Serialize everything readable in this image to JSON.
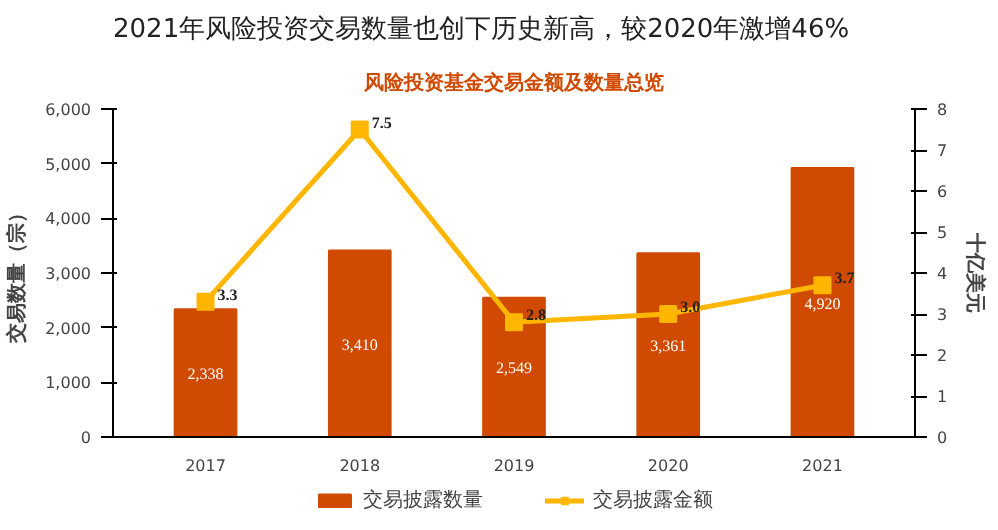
{
  "chart_data": {
    "type": "bar",
    "title": "2021年风险投资交易数量也创下历史新高，较2020年激增46%",
    "subtitle": "风险投资基金交易金额及数量总览",
    "ylabel": "交易数量（宗）",
    "y2label": "十亿美元",
    "categories": [
      "2017",
      "2018",
      "2019",
      "2020",
      "2021"
    ],
    "series": [
      {
        "name": "交易披露数量",
        "color": "#d04a02",
        "values": [
          2338,
          3410,
          2549,
          3361,
          4920
        ],
        "value_labels": [
          "2,338",
          "3,410",
          "2,549",
          "3,361",
          "4,920"
        ]
      },
      {
        "name": "交易披露金额",
        "type": "line",
        "axis": "y2",
        "color": "#ffb600",
        "values": [
          3.3,
          7.5,
          2.8,
          3.0,
          3.7
        ],
        "value_labels": [
          "3.3",
          "7.5",
          "2.8",
          "3.0",
          "3.7"
        ]
      }
    ],
    "ylim": [
      0,
      6000
    ],
    "yticks": [
      0,
      {
        "value": 1000,
        "label": "1,000"
      },
      {
        "value": 2000,
        "label": "2,000"
      },
      {
        "value": 3000,
        "label": "3,000"
      },
      {
        "value": 4000,
        "label": "4,000"
      },
      {
        "value": 5000,
        "label": "5,000"
      },
      {
        "value": 6000,
        "label": "6,000"
      }
    ],
    "y2lim": [
      0,
      8
    ],
    "y2ticks": [
      0,
      1,
      2,
      3,
      4,
      5,
      6,
      7,
      8
    ],
    "legend": "bottom",
    "grid": false,
    "marker": "square"
  }
}
